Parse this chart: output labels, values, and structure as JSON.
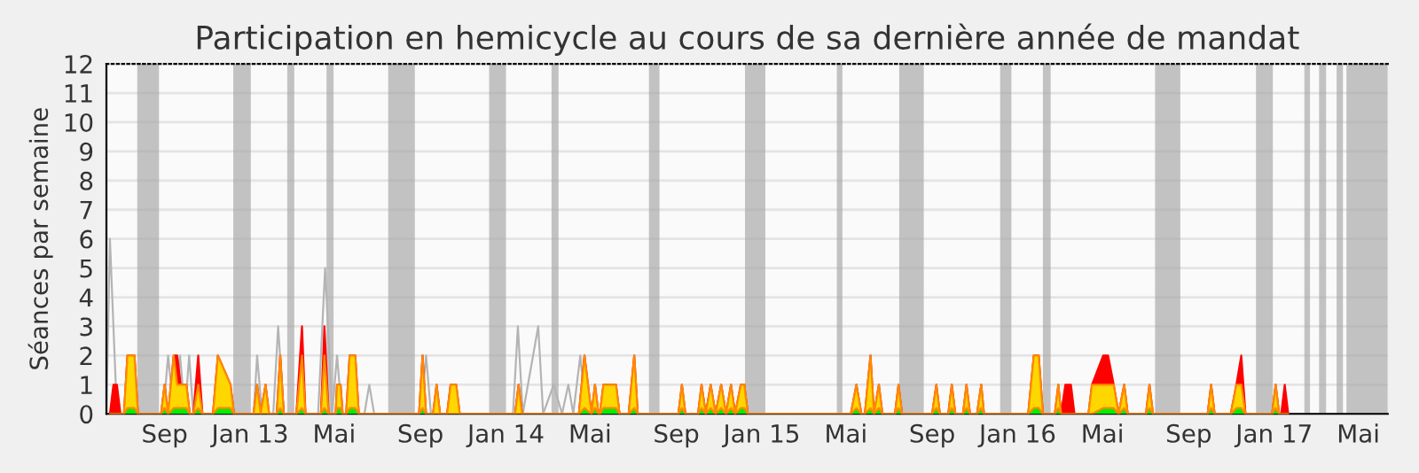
{
  "chart_data": {
    "type": "area",
    "title": "Participation en hemicycle au cours de sa dernière année de mandat",
    "ylabel": "Séances par semaine",
    "x": [
      "2012-06-15",
      "2012-06-20",
      "2012-06-25",
      "2012-06-30",
      "2012-07-05",
      "2012-07-10",
      "2012-07-20",
      "2012-07-25",
      "2012-08-27",
      "2012-09-01",
      "2012-09-06",
      "2012-09-14",
      "2012-09-19",
      "2012-09-24",
      "2012-10-02",
      "2012-10-07",
      "2012-10-12",
      "2012-10-19",
      "2012-10-25",
      "2012-11-09",
      "2012-11-16",
      "2012-12-04",
      "2012-12-09",
      "2013-01-06",
      "2013-01-11",
      "2013-01-16",
      "2013-01-23",
      "2013-01-28",
      "2013-02-08",
      "2013-02-13",
      "2013-02-18",
      "2013-03-08",
      "2013-03-16",
      "2013-03-21",
      "2013-04-12",
      "2013-04-17",
      "2013-04-23",
      "2013-05-03",
      "2013-05-05",
      "2013-05-10",
      "2013-05-13",
      "2013-05-18",
      "2013-05-23",
      "2013-05-31",
      "2013-06-05",
      "2013-08-30",
      "2013-09-04",
      "2013-09-09",
      "2013-09-19",
      "2013-09-24",
      "2013-09-29",
      "2013-10-09",
      "2013-10-14",
      "2013-10-22",
      "2013-10-27",
      "2014-01-14",
      "2014-01-19",
      "2014-01-24",
      "2014-04-15",
      "2014-04-23",
      "2014-05-03",
      "2014-05-08",
      "2014-05-13",
      "2014-05-15",
      "2014-05-20",
      "2014-06-07",
      "2014-06-12",
      "2014-06-25",
      "2014-07-03",
      "2014-07-08",
      "2014-09-04",
      "2014-09-09",
      "2014-09-14",
      "2014-10-02",
      "2014-10-07",
      "2014-10-13",
      "2014-10-20",
      "2014-10-27",
      "2014-11-04",
      "2014-11-11",
      "2014-11-18",
      "2014-11-24",
      "2014-12-02",
      "2014-12-07",
      "2014-12-12",
      "2015-05-08",
      "2015-05-16",
      "2015-05-23",
      "2015-05-28",
      "2015-06-05",
      "2015-06-10",
      "2015-06-17",
      "2015-06-22",
      "2015-07-10",
      "2015-07-15",
      "2015-07-20",
      "2015-09-01",
      "2015-09-07",
      "2015-09-12",
      "2015-09-24",
      "2015-09-29",
      "2015-10-04",
      "2015-10-15",
      "2015-10-20",
      "2015-10-25",
      "2015-11-04",
      "2015-11-10",
      "2015-11-14",
      "2016-01-16",
      "2016-01-24",
      "2016-01-31",
      "2016-02-06",
      "2016-02-23",
      "2016-02-28",
      "2016-03-03",
      "2016-03-09",
      "2016-03-17",
      "2016-03-22",
      "2016-04-11",
      "2016-04-16",
      "2016-05-02",
      "2016-05-09",
      "2016-05-17",
      "2016-05-24",
      "2016-06-01",
      "2016-06-06",
      "2016-07-02",
      "2016-07-07",
      "2016-07-12",
      "2016-09-28",
      "2016-10-03",
      "2016-10-08",
      "2016-10-31",
      "2016-11-08",
      "2016-11-15",
      "2016-11-21",
      "2016-12-29",
      "2017-01-03",
      "2017-01-08",
      "2017-01-11",
      "2017-01-16",
      "2017-01-21"
    ],
    "series": [
      {
        "color": "#ff0000",
        "values": [
          0,
          1,
          1,
          0,
          0,
          2,
          2,
          0,
          0,
          1,
          0,
          2,
          2,
          1,
          1,
          0,
          0,
          2,
          0,
          0,
          2,
          1,
          0,
          0,
          1,
          0,
          1,
          0,
          0,
          2,
          0,
          0,
          3,
          0,
          0,
          3,
          0,
          0,
          1,
          1,
          0,
          0,
          2,
          2,
          0,
          0,
          2,
          0,
          0,
          1,
          0,
          0,
          1,
          1,
          0,
          0,
          1,
          0,
          0,
          2,
          0,
          1,
          0,
          0,
          1,
          1,
          0,
          0,
          2,
          0,
          0,
          1,
          0,
          0,
          1,
          0,
          1,
          0,
          1,
          0,
          1,
          0,
          1,
          1,
          0,
          0,
          1,
          0,
          0,
          2,
          0,
          1,
          0,
          0,
          1,
          0,
          0,
          1,
          0,
          0,
          1,
          0,
          0,
          1,
          0,
          0,
          1,
          0,
          0,
          2,
          2,
          0,
          0,
          1,
          0,
          1,
          1,
          0,
          0,
          1,
          2,
          2,
          1,
          0,
          1,
          0,
          0,
          1,
          0,
          0,
          1,
          0,
          0,
          1,
          2,
          0,
          0,
          1,
          0,
          0,
          1,
          0
        ]
      },
      {
        "color": "#ffd700",
        "values": [
          0,
          0,
          0,
          0,
          0,
          2,
          2,
          0,
          0,
          1,
          0,
          2,
          1,
          1,
          1,
          0,
          0,
          1,
          0,
          0,
          2,
          1,
          0,
          0,
          1,
          0,
          1,
          0,
          0,
          2,
          0,
          0,
          2,
          0,
          0,
          2,
          0,
          0,
          1,
          1,
          0,
          0,
          2,
          2,
          0,
          0,
          2,
          0,
          0,
          1,
          0,
          0,
          1,
          1,
          0,
          0,
          1,
          0,
          0,
          2,
          0,
          1,
          0,
          0,
          1,
          1,
          0,
          0,
          2,
          0,
          0,
          1,
          0,
          0,
          1,
          0,
          1,
          0,
          1,
          0,
          1,
          0,
          1,
          1,
          0,
          0,
          1,
          0,
          0,
          2,
          0,
          1,
          0,
          0,
          1,
          0,
          0,
          1,
          0,
          0,
          1,
          0,
          0,
          1,
          0,
          0,
          1,
          0,
          0,
          2,
          2,
          0,
          0,
          1,
          0,
          0,
          0,
          0,
          0,
          1,
          1,
          1,
          1,
          0,
          1,
          0,
          0,
          1,
          0,
          0,
          1,
          0,
          0,
          1,
          1,
          0,
          0,
          1,
          0,
          0,
          0,
          0
        ]
      },
      {
        "color": "#00ee00",
        "values": [
          0,
          0,
          0,
          0,
          0,
          0.2,
          0.2,
          0,
          0,
          0.2,
          0,
          0.2,
          0.2,
          0.2,
          0.2,
          0,
          0,
          0.2,
          0,
          0,
          0.2,
          0.2,
          0,
          0,
          0,
          0,
          0,
          0,
          0,
          0.2,
          0,
          0,
          0.2,
          0,
          0,
          0.2,
          0,
          0,
          0.2,
          0.2,
          0,
          0,
          0.2,
          0.2,
          0,
          0,
          0.2,
          0,
          0,
          0,
          0,
          0,
          0,
          0,
          0,
          0,
          0,
          0,
          0,
          0.2,
          0,
          0.2,
          0,
          0,
          0.2,
          0.2,
          0,
          0,
          0.2,
          0,
          0,
          0.2,
          0,
          0,
          0.2,
          0,
          0.2,
          0,
          0.2,
          0,
          0.2,
          0,
          0.2,
          0.2,
          0,
          0,
          0.2,
          0,
          0,
          0.2,
          0,
          0.2,
          0,
          0,
          0.2,
          0,
          0,
          0.2,
          0,
          0,
          0.2,
          0,
          0,
          0.2,
          0,
          0,
          0.2,
          0,
          0,
          0.2,
          0.2,
          0,
          0,
          0.2,
          0,
          0,
          0,
          0,
          0,
          0,
          0.2,
          0.2,
          0.2,
          0,
          0.2,
          0,
          0,
          0.2,
          0,
          0,
          0.2,
          0,
          0,
          0.2,
          0.2,
          0,
          0,
          0.2,
          0,
          0,
          0,
          0
        ]
      },
      {
        "type": "line",
        "color": "#b4b4b4",
        "x": [
          "2012-06-10",
          "2012-06-15",
          "2012-06-25",
          "2012-08-30",
          "2012-09-06",
          "2012-09-14",
          "2012-09-23",
          "2012-09-30",
          "2012-10-06",
          "2012-10-12",
          "2012-11-09",
          "2012-11-16",
          "2012-11-25",
          "2013-01-06",
          "2013-01-11",
          "2013-01-18",
          "2013-02-03",
          "2013-02-10",
          "2013-02-18",
          "2013-04-08",
          "2013-04-18",
          "2013-04-28",
          "2013-05-05",
          "2013-05-12",
          "2013-06-13",
          "2013-06-20",
          "2013-06-27",
          "2013-09-02",
          "2013-09-09",
          "2013-09-16",
          "2014-01-11",
          "2014-01-18",
          "2014-01-25",
          "2014-02-16",
          "2014-02-23",
          "2014-03-10",
          "2014-03-22",
          "2014-03-31",
          "2014-04-07",
          "2014-04-17",
          "2014-04-25",
          "2017-06-12"
        ],
        "values": [
          0,
          6,
          0,
          0,
          2,
          0,
          2,
          0,
          2,
          0,
          0,
          null,
          0,
          0,
          2,
          0,
          0,
          3,
          0,
          0,
          5,
          0,
          2,
          0,
          0,
          1,
          0,
          0,
          2,
          0,
          0,
          3,
          0,
          3,
          0,
          1,
          0,
          1,
          0,
          2,
          0,
          0
        ]
      }
    ],
    "xlim": [
      "2012-06-10",
      "2017-06-12"
    ],
    "xticks": [
      {
        "value": "2012-09-01",
        "label": "Sep"
      },
      {
        "value": "2013-01-01",
        "label": "Jan 13"
      },
      {
        "value": "2013-05-01",
        "label": "Mai"
      },
      {
        "value": "2013-09-01",
        "label": "Sep"
      },
      {
        "value": "2014-01-01",
        "label": "Jan 14"
      },
      {
        "value": "2014-05-01",
        "label": "Mai"
      },
      {
        "value": "2014-09-01",
        "label": "Sep"
      },
      {
        "value": "2015-01-01",
        "label": "Jan 15"
      },
      {
        "value": "2015-05-01",
        "label": "Mai"
      },
      {
        "value": "2015-09-01",
        "label": "Sep"
      },
      {
        "value": "2016-01-01",
        "label": "Jan 16"
      },
      {
        "value": "2016-05-01",
        "label": "Mai"
      },
      {
        "value": "2016-09-01",
        "label": "Sep"
      },
      {
        "value": "2017-01-01",
        "label": "Jan 17"
      },
      {
        "value": "2017-05-01",
        "label": "Mai"
      }
    ],
    "ylim": [
      0,
      12
    ],
    "yticks": [
      0,
      1,
      2,
      3,
      4,
      5,
      6,
      7,
      8,
      9,
      10,
      11,
      12
    ],
    "grid": "y",
    "bands": [
      {
        "axis": "x",
        "from": "2012-07-24",
        "to": "2012-08-24",
        "color": "#aaaaaa"
      },
      {
        "axis": "x",
        "from": "2012-12-08",
        "to": "2013-01-02",
        "color": "#aaaaaa"
      },
      {
        "axis": "x",
        "from": "2013-02-23",
        "to": "2013-03-05",
        "color": "#aaaaaa"
      },
      {
        "axis": "x",
        "from": "2013-04-20",
        "to": "2013-04-30",
        "color": "#aaaaaa"
      },
      {
        "axis": "x",
        "from": "2013-07-17",
        "to": "2013-08-24",
        "color": "#aaaaaa"
      },
      {
        "axis": "x",
        "from": "2013-12-08",
        "to": "2014-01-01",
        "color": "#aaaaaa"
      },
      {
        "axis": "x",
        "from": "2014-03-07",
        "to": "2014-03-17",
        "color": "#aaaaaa"
      },
      {
        "axis": "x",
        "from": "2014-07-24",
        "to": "2014-08-08",
        "color": "#aaaaaa"
      },
      {
        "axis": "x",
        "from": "2014-12-08",
        "to": "2015-01-06",
        "color": "#aaaaaa"
      },
      {
        "axis": "x",
        "from": "2015-04-18",
        "to": "2015-04-26",
        "color": "#aaaaaa"
      },
      {
        "axis": "x",
        "from": "2015-07-16",
        "to": "2015-08-20",
        "color": "#aaaaaa"
      },
      {
        "axis": "x",
        "from": "2015-12-07",
        "to": "2015-12-23",
        "color": "#aaaaaa"
      },
      {
        "axis": "x",
        "from": "2016-02-06",
        "to": "2016-02-17",
        "color": "#aaaaaa"
      },
      {
        "axis": "x",
        "from": "2016-07-15",
        "to": "2016-08-20",
        "color": "#aaaaaa"
      },
      {
        "axis": "x",
        "from": "2016-12-06",
        "to": "2016-12-30",
        "color": "#aaaaaa"
      },
      {
        "axis": "x",
        "from": "2017-02-13",
        "to": "2017-02-21",
        "color": "#aaaaaa"
      },
      {
        "axis": "x",
        "from": "2017-03-06",
        "to": "2017-03-16",
        "color": "#aaaaaa"
      },
      {
        "axis": "x",
        "from": "2017-03-31",
        "to": "2017-04-09",
        "color": "#aaaaaa"
      },
      {
        "axis": "x",
        "from": "2017-04-14",
        "to": "2017-06-12",
        "color": "#aaaaaa"
      }
    ]
  }
}
